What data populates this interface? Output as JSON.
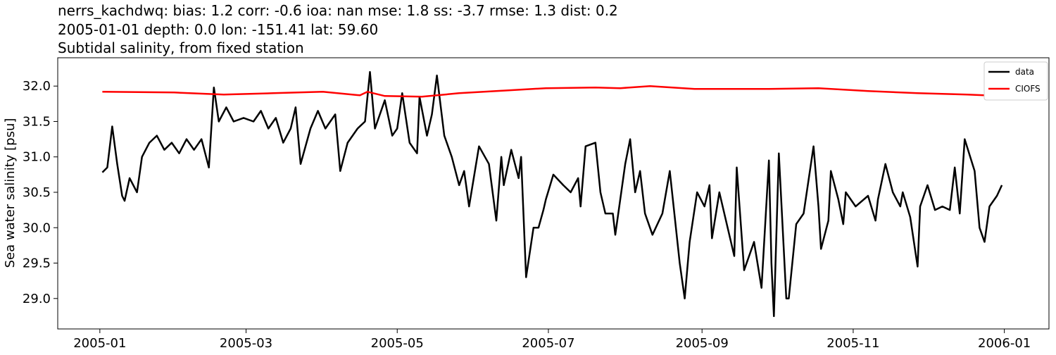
{
  "chart_data": {
    "type": "line",
    "titles": [
      "nerrs_kachdwq: bias: 1.2  corr: -0.6  ioa: nan  mse: 1.8  ss: -3.7  rmse: 1.3  dist: 0.2",
      "2005-01-01 depth: 0.0 lon: -151.41 lat: 59.60",
      "Subtidal salinity, from fixed station"
    ],
    "y_label": "Sea water salinity [psu]",
    "xlim": [
      "2004-12-15",
      "2006-01-19"
    ],
    "xticks": [
      "2005-01",
      "2005-03",
      "2005-05",
      "2005-07",
      "2005-09",
      "2005-11",
      "2006-01"
    ],
    "ylim": [
      28.57,
      32.4
    ],
    "yticks": [
      {
        "value": 29,
        "label": "29.0"
      },
      29.5,
      {
        "value": 30,
        "label": "30.0"
      },
      30.5,
      {
        "value": 31,
        "label": "31.0"
      },
      31.5,
      {
        "value": 32,
        "label": "32.0"
      }
    ],
    "grid": false,
    "legend": "upper right",
    "series": [
      {
        "name": "data",
        "color": "#000000",
        "x": [
          "2005-01-02",
          "2005-01-04",
          "2005-01-06",
          "2005-01-08",
          "2005-01-10",
          "2005-01-11",
          "2005-01-13",
          "2005-01-16",
          "2005-01-18",
          "2005-01-21",
          "2005-01-24",
          "2005-01-27",
          "2005-01-30",
          "2005-02-02",
          "2005-02-05",
          "2005-02-08",
          "2005-02-11",
          "2005-02-14",
          "2005-02-16",
          "2005-02-18",
          "2005-02-21",
          "2005-02-24",
          "2005-02-28",
          "2005-03-04",
          "2005-03-07",
          "2005-03-10",
          "2005-03-13",
          "2005-03-16",
          "2005-03-19",
          "2005-03-21",
          "2005-03-23",
          "2005-03-27",
          "2005-03-30",
          "2005-04-02",
          "2005-04-06",
          "2005-04-08",
          "2005-04-11",
          "2005-04-15",
          "2005-04-18",
          "2005-04-20",
          "2005-04-22",
          "2005-04-26",
          "2005-04-29",
          "2005-05-01",
          "2005-05-03",
          "2005-05-06",
          "2005-05-09",
          "2005-05-10",
          "2005-05-13",
          "2005-05-15",
          "2005-05-17",
          "2005-05-20",
          "2005-05-23",
          "2005-05-26",
          "2005-05-28",
          "2005-05-30",
          "2005-06-03",
          "2005-06-07",
          "2005-06-10",
          "2005-06-12",
          "2005-06-13",
          "2005-06-16",
          "2005-06-19",
          "2005-06-20",
          "2005-06-22",
          "2005-06-25",
          "2005-06-27",
          "2005-06-29",
          "2005-06-30",
          "2005-07-03",
          "2005-07-07",
          "2005-07-10",
          "2005-07-13",
          "2005-07-14",
          "2005-07-16",
          "2005-07-20",
          "2005-07-22",
          "2005-07-24",
          "2005-07-27",
          "2005-07-28",
          "2005-08-01",
          "2005-08-03",
          "2005-08-05",
          "2005-08-07",
          "2005-08-09",
          "2005-08-12",
          "2005-08-16",
          "2005-08-19",
          "2005-08-23",
          "2005-08-25",
          "2005-08-27",
          "2005-08-30",
          "2005-09-02",
          "2005-09-04",
          "2005-09-05",
          "2005-09-08",
          "2005-09-14",
          "2005-09-15",
          "2005-09-18",
          "2005-09-22",
          "2005-09-25",
          "2005-09-28",
          "2005-09-29",
          "2005-09-30",
          "2005-10-02",
          "2005-10-05",
          "2005-10-06",
          "2005-10-09",
          "2005-10-12",
          "2005-10-16",
          "2005-10-18",
          "2005-10-19",
          "2005-10-22",
          "2005-10-23",
          "2005-10-26",
          "2005-10-28",
          "2005-10-29",
          "2005-11-02",
          "2005-11-07",
          "2005-11-10",
          "2005-11-11",
          "2005-11-14",
          "2005-11-17",
          "2005-11-20",
          "2005-11-21",
          "2005-11-24",
          "2005-11-27",
          "2005-11-28",
          "2005-12-01",
          "2005-12-04",
          "2005-12-07",
          "2005-12-10",
          "2005-12-12",
          "2005-12-14",
          "2005-12-16",
          "2005-12-20",
          "2005-12-22",
          "2005-12-24",
          "2005-12-26",
          "2005-12-29",
          "2005-12-31"
        ],
        "values": [
          30.78,
          30.85,
          31.43,
          30.9,
          30.45,
          30.38,
          30.7,
          30.5,
          31.0,
          31.2,
          31.3,
          31.1,
          31.2,
          31.05,
          31.25,
          31.1,
          31.25,
          30.85,
          31.98,
          31.5,
          31.7,
          31.5,
          31.55,
          31.5,
          31.65,
          31.4,
          31.55,
          31.2,
          31.4,
          31.7,
          30.9,
          31.4,
          31.65,
          31.4,
          31.6,
          30.8,
          31.2,
          31.4,
          31.5,
          32.2,
          31.4,
          31.8,
          31.3,
          31.4,
          31.9,
          31.2,
          31.05,
          31.85,
          31.3,
          31.6,
          32.15,
          31.3,
          31.0,
          30.6,
          30.8,
          30.3,
          31.15,
          30.9,
          30.1,
          31.0,
          30.6,
          31.1,
          30.7,
          31.0,
          29.3,
          30.0,
          30.0,
          30.25,
          30.4,
          30.75,
          30.6,
          30.5,
          30.7,
          30.3,
          31.15,
          31.2,
          30.5,
          30.2,
          30.2,
          29.9,
          30.9,
          31.25,
          30.5,
          30.8,
          30.2,
          29.9,
          30.2,
          30.8,
          29.5,
          29.0,
          29.8,
          30.5,
          30.3,
          30.6,
          29.85,
          30.5,
          29.6,
          30.85,
          29.4,
          29.8,
          29.15,
          30.95,
          29.5,
          28.75,
          31.05,
          29.0,
          29.0,
          30.05,
          30.2,
          31.15,
          30.3,
          29.7,
          30.1,
          30.8,
          30.4,
          30.05,
          30.5,
          30.3,
          30.45,
          30.1,
          30.4,
          30.9,
          30.5,
          30.3,
          30.5,
          30.15,
          29.45,
          30.3,
          30.6,
          30.25,
          30.3,
          30.25,
          30.85,
          30.2,
          31.25,
          30.8,
          30.0,
          29.8,
          30.3,
          30.45,
          30.6
        ]
      },
      {
        "name": "CIOFS",
        "color": "#ff0000",
        "x": [
          "2005-01-02",
          "2005-01-31",
          "2005-02-20",
          "2005-03-12",
          "2005-04-01",
          "2005-04-16",
          "2005-04-19",
          "2005-04-26",
          "2005-05-11",
          "2005-05-26",
          "2005-06-05",
          "2005-06-15",
          "2005-06-30",
          "2005-07-20",
          "2005-07-30",
          "2005-08-11",
          "2005-08-29",
          "2005-09-28",
          "2005-10-18",
          "2005-11-07",
          "2005-11-27",
          "2005-12-17",
          "2005-12-31"
        ],
        "values": [
          31.92,
          31.91,
          31.88,
          31.9,
          31.92,
          31.87,
          31.92,
          31.86,
          31.85,
          31.9,
          31.92,
          31.94,
          31.97,
          31.98,
          31.97,
          32.0,
          31.96,
          31.96,
          31.97,
          31.93,
          31.9,
          31.88,
          31.86
        ]
      }
    ]
  }
}
